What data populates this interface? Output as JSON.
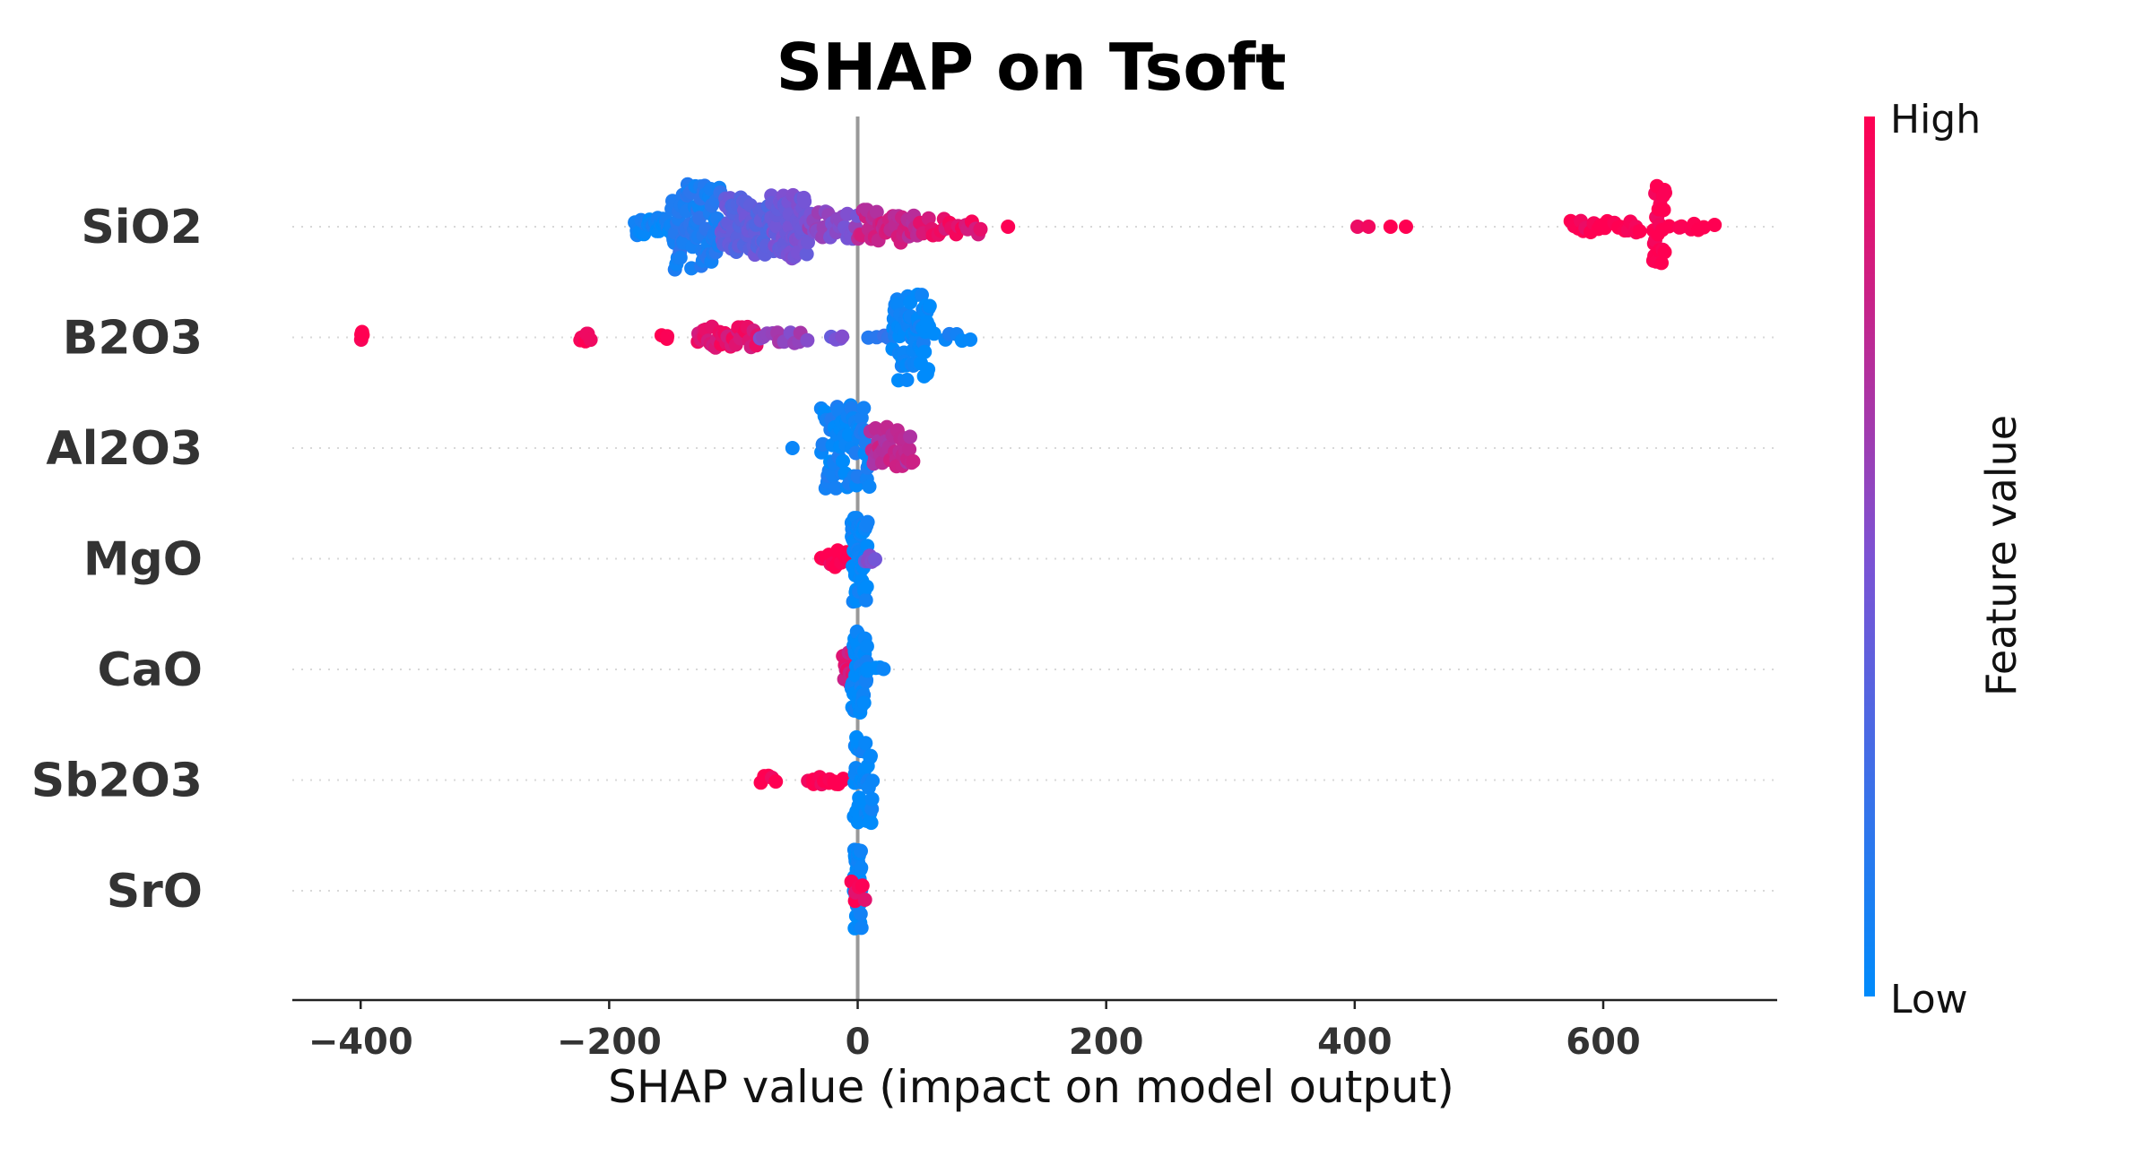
{
  "chart_data": {
    "type": "scatter",
    "title": "SHAP on Tsoft",
    "xlabel": "SHAP value (impact on model output)",
    "ylabel": "",
    "xlim": [
      -455,
      740
    ],
    "xticks": [
      -400,
      -200,
      0,
      200,
      400,
      600
    ],
    "xtick_labels": [
      "−400",
      "−200",
      "0",
      "200",
      "400",
      "600"
    ],
    "colorbar": {
      "title": "Feature value",
      "high_label": "High",
      "low_label": "Low",
      "high_color": "#ff0052",
      "low_color": "#008bfb"
    },
    "zero_line_color": "#999999",
    "features": [
      {
        "name": "SiO2",
        "groups": [
          {
            "range": [
              -180,
              -150
            ],
            "n": 26,
            "fv": 0.05,
            "spread": 0.25
          },
          {
            "range": [
              -150,
              -110
            ],
            "n": 80,
            "fv": 0.12,
            "spread": 1.0
          },
          {
            "range": [
              -110,
              -70
            ],
            "n": 60,
            "fv": 0.38,
            "spread": 0.7
          },
          {
            "range": [
              -70,
              -40
            ],
            "n": 55,
            "fv": 0.45,
            "spread": 0.75
          },
          {
            "range": [
              -40,
              0
            ],
            "n": 34,
            "fv": 0.55,
            "spread": 0.35
          },
          {
            "range": [
              0,
              50
            ],
            "n": 40,
            "fv": 0.78,
            "spread": 0.4
          },
          {
            "range": [
              50,
              100
            ],
            "n": 20,
            "fv": 0.9,
            "spread": 0.2
          },
          {
            "range": [
              120,
              122
            ],
            "n": 1,
            "fv": 1.0,
            "spread": 0
          },
          {
            "range": [
              396,
              446
            ],
            "n": 4,
            "fv": 1.0,
            "spread": 0
          },
          {
            "range": [
              572,
              632
            ],
            "n": 22,
            "fv": 1.0,
            "spread": 0.15
          },
          {
            "range": [
              640,
              650
            ],
            "n": 26,
            "fv": 1.0,
            "spread": 0.95
          },
          {
            "range": [
              652,
              690
            ],
            "n": 8,
            "fv": 1.0,
            "spread": 0.1
          }
        ]
      },
      {
        "name": "B2O3",
        "groups": [
          {
            "range": [
              -400,
              -398
            ],
            "n": 4,
            "fv": 1.0,
            "spread": 0.15
          },
          {
            "range": [
              -224,
              -214
            ],
            "n": 6,
            "fv": 1.0,
            "spread": 0.1
          },
          {
            "range": [
              -160,
              -150
            ],
            "n": 3,
            "fv": 1.0,
            "spread": 0.05
          },
          {
            "range": [
              -130,
              -80
            ],
            "n": 34,
            "fv": 0.9,
            "spread": 0.25
          },
          {
            "range": [
              -80,
              -40
            ],
            "n": 12,
            "fv": 0.6,
            "spread": 0.15
          },
          {
            "range": [
              -25,
              -10
            ],
            "n": 4,
            "fv": 0.45,
            "spread": 0.05
          },
          {
            "range": [
              8,
              28
            ],
            "n": 4,
            "fv": 0.2,
            "spread": 0.05
          },
          {
            "range": [
              28,
              58
            ],
            "n": 70,
            "fv": 0.02,
            "spread": 1.0
          },
          {
            "range": [
              60,
              95
            ],
            "n": 6,
            "fv": 0.05,
            "spread": 0.1
          }
        ]
      },
      {
        "name": "Al2O3",
        "groups": [
          {
            "range": [
              -55,
              -50
            ],
            "n": 1,
            "fv": 0.0,
            "spread": 0
          },
          {
            "range": [
              -30,
              10
            ],
            "n": 60,
            "fv": 0.05,
            "spread": 1.0
          },
          {
            "range": [
              10,
              45
            ],
            "n": 35,
            "fv": 0.75,
            "spread": 0.5
          }
        ]
      },
      {
        "name": "MgO",
        "groups": [
          {
            "range": [
              -30,
              -5
            ],
            "n": 18,
            "fv": 1.0,
            "spread": 0.2
          },
          {
            "range": [
              -5,
              8
            ],
            "n": 50,
            "fv": 0.02,
            "spread": 1.0
          },
          {
            "range": [
              5,
              15
            ],
            "n": 6,
            "fv": 0.5,
            "spread": 0.1
          }
        ]
      },
      {
        "name": "CaO",
        "groups": [
          {
            "range": [
              -12,
              0
            ],
            "n": 14,
            "fv": 0.85,
            "spread": 0.4
          },
          {
            "range": [
              -5,
              8
            ],
            "n": 44,
            "fv": 0.02,
            "spread": 1.0
          },
          {
            "range": [
              8,
              22
            ],
            "n": 4,
            "fv": 0.0,
            "spread": 0.05
          }
        ]
      },
      {
        "name": "Sb2O3",
        "groups": [
          {
            "range": [
              -80,
              -64
            ],
            "n": 6,
            "fv": 1.0,
            "spread": 0.1
          },
          {
            "range": [
              -40,
              -10
            ],
            "n": 14,
            "fv": 1.0,
            "spread": 0.1
          },
          {
            "range": [
              -3,
              12
            ],
            "n": 46,
            "fv": 0.0,
            "spread": 1.0
          }
        ]
      },
      {
        "name": "SrO",
        "groups": [
          {
            "range": [
              -3,
              3
            ],
            "n": 42,
            "fv": 0.0,
            "spread": 1.0
          },
          {
            "range": [
              -6,
              6
            ],
            "n": 6,
            "fv": 0.95,
            "spread": 0.25
          }
        ]
      }
    ]
  }
}
